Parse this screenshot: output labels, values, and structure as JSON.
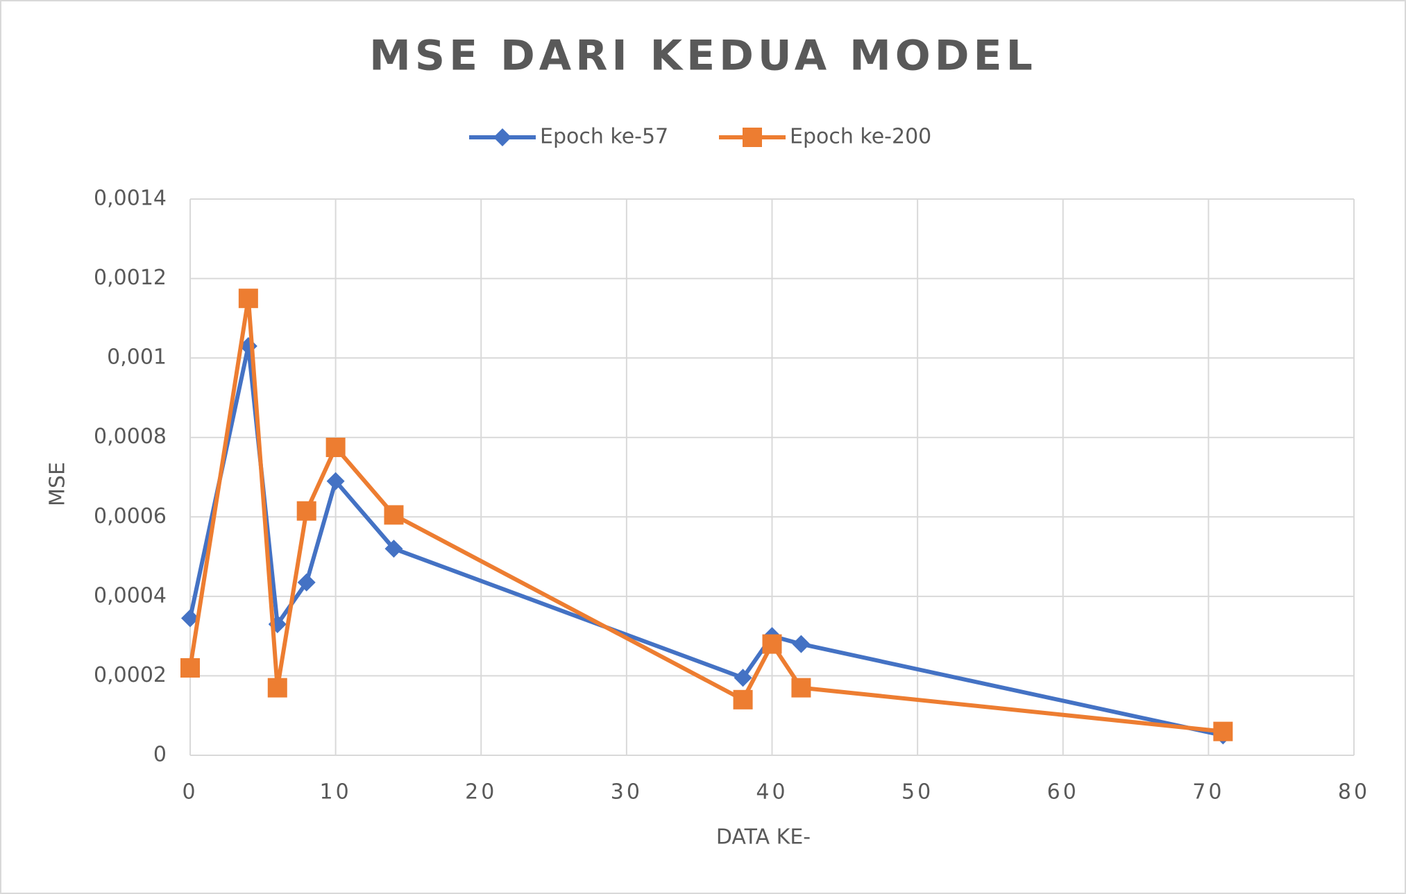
{
  "chart_data": {
    "type": "line",
    "title": "MSE DARI KEDUA MODEL",
    "x_label": "DATA KE-",
    "y_label": "MSE",
    "x": [
      0,
      4,
      6,
      8,
      10,
      14,
      38,
      40,
      42,
      71
    ],
    "series": [
      {
        "name": "Epoch ke-57",
        "color": "#4472c4",
        "marker": "diamond",
        "values": [
          0.000345,
          0.00103,
          0.00033,
          0.000435,
          0.00069,
          0.00052,
          0.000195,
          0.0003,
          0.00028,
          5e-05
        ]
      },
      {
        "name": "Epoch ke-200",
        "color": "#ed7d31",
        "marker": "square",
        "values": [
          0.00022,
          0.00115,
          0.00017,
          0.000615,
          0.000775,
          0.000605,
          0.00014,
          0.00028,
          0.00017,
          6e-05
        ]
      }
    ],
    "xlim": [
      0,
      80
    ],
    "xticks": [
      0,
      10,
      20,
      30,
      40,
      50,
      60,
      70,
      80
    ],
    "ylim": [
      0,
      0.0014
    ],
    "yticks": [
      0,
      {
        "value": 0.0002,
        "label": "0,0002"
      },
      {
        "value": 0.0004,
        "label": "0,0004"
      },
      {
        "value": 0.0006,
        "label": "0,0006"
      },
      {
        "value": 0.0008,
        "label": "0,0008"
      },
      {
        "value": 0.001,
        "label": "0,001"
      },
      {
        "value": 0.0012,
        "label": "0,0012"
      },
      {
        "value": 0.0014,
        "label": "0,0014"
      }
    ],
    "grid": true,
    "legend": "top"
  }
}
